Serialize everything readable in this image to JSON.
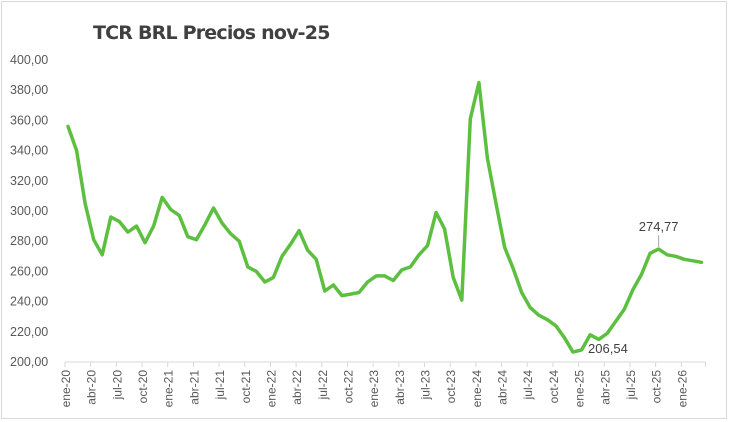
{
  "chart_data": {
    "type": "line",
    "title": "TCR BRL Precios nov-25",
    "xlabel": "",
    "ylabel": "",
    "ylim": [
      200,
      400
    ],
    "grid": false,
    "legend": "none",
    "y_ticks": [
      "400,00",
      "380,00",
      "360,00",
      "340,00",
      "320,00",
      "300,00",
      "280,00",
      "260,00",
      "240,00",
      "220,00",
      "200,00"
    ],
    "x_tick_labels": [
      "ene-20",
      "abr-20",
      "jul-20",
      "oct-20",
      "ene-21",
      "abr-21",
      "jul-21",
      "oct-21",
      "ene-22",
      "abr-22",
      "jul-22",
      "oct-22",
      "ene-23",
      "abr-23",
      "jul-23",
      "oct-23",
      "ene-24",
      "abr-24",
      "jul-24",
      "oct-24",
      "ene-25",
      "abr-25",
      "jul-25",
      "oct-25",
      "ene-26"
    ],
    "series_color": "#5cbf3f",
    "series": [
      {
        "name": "TCR BRL",
        "x": [
          "ene-20",
          "feb-20",
          "mar-20",
          "abr-20",
          "may-20",
          "jun-20",
          "jul-20",
          "ago-20",
          "sep-20",
          "oct-20",
          "nov-20",
          "dic-20",
          "ene-21",
          "feb-21",
          "mar-21",
          "abr-21",
          "may-21",
          "jun-21",
          "jul-21",
          "ago-21",
          "sep-21",
          "oct-21",
          "nov-21",
          "dic-21",
          "ene-22",
          "feb-22",
          "mar-22",
          "abr-22",
          "may-22",
          "jun-22",
          "jul-22",
          "ago-22",
          "sep-22",
          "oct-22",
          "nov-22",
          "dic-22",
          "ene-23",
          "feb-23",
          "mar-23",
          "abr-23",
          "may-23",
          "jun-23",
          "jul-23",
          "ago-23",
          "sep-23",
          "oct-23",
          "nov-23",
          "dic-23",
          "ene-24",
          "feb-24",
          "mar-24",
          "abr-24",
          "may-24",
          "jun-24",
          "jul-24",
          "ago-24",
          "sep-24",
          "oct-24",
          "nov-24",
          "dic-24",
          "ene-25",
          "feb-25",
          "mar-25",
          "abr-25",
          "may-25",
          "jun-25",
          "jul-25",
          "ago-25",
          "sep-25",
          "oct-25",
          "nov-25",
          "dic-25",
          "ene-26",
          "feb-26",
          "mar-26"
        ],
        "values": [
          356,
          340,
          305,
          281,
          271,
          296,
          293,
          286,
          290,
          279,
          290,
          309,
          301,
          297,
          283,
          281,
          291,
          302,
          292,
          285,
          280,
          263,
          260,
          253,
          256,
          270,
          278,
          287,
          274,
          268,
          247,
          251,
          244,
          245,
          246,
          253,
          257,
          257,
          254,
          261,
          263,
          271,
          277,
          299,
          288,
          256,
          241,
          361,
          385,
          335,
          305,
          276,
          262,
          246,
          236,
          231,
          228,
          224,
          216,
          206.54,
          208,
          218,
          215,
          219,
          227,
          235,
          248,
          258,
          272,
          274.77,
          271,
          270,
          268,
          267,
          266
        ]
      }
    ],
    "annotations": [
      {
        "label": "274,77",
        "x": "oct-25",
        "value": 274.77
      },
      {
        "label": "206,54",
        "x": "dic-24",
        "value": 206.54
      }
    ]
  }
}
